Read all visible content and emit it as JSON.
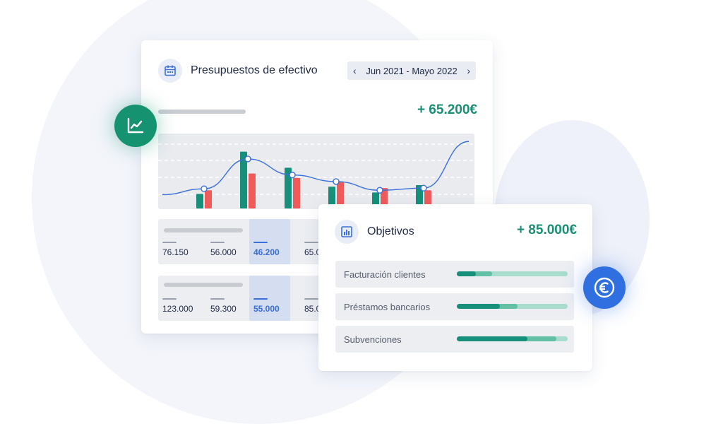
{
  "budget": {
    "title": "Presupuestos de efectivo",
    "date_range": "Jun 2021 - Mayo 2022",
    "total": "+ 65.200€",
    "rows": [
      {
        "values": [
          "76.150",
          "56.000",
          "46.200",
          "65.0"
        ],
        "highlighted_index": 2
      },
      {
        "values": [
          "123.000",
          "59.300",
          "55.000",
          "85.0"
        ],
        "highlighted_index": 2
      }
    ]
  },
  "goals": {
    "title": "Objetivos",
    "total": "+ 85.000€",
    "items": [
      {
        "label": "Facturación clientes",
        "done": 0.17,
        "partial": 0.32
      },
      {
        "label": "Préstamos bancarios",
        "done": 0.39,
        "partial": 0.55
      },
      {
        "label": "Subvenciones",
        "done": 0.64,
        "partial": 0.9
      }
    ]
  },
  "chart_data": {
    "type": "bar",
    "categories": [
      "1",
      "2",
      "3",
      "4",
      "5",
      "6"
    ],
    "series": [
      {
        "values": [
          20,
          78,
          56,
          30,
          22,
          32
        ],
        "color": "#16907a"
      },
      {
        "values": [
          25,
          48,
          42,
          37,
          28,
          25
        ],
        "color": "#ef5b5b"
      }
    ],
    "trend_points": [
      27,
      68,
      46,
      37,
      25,
      28
    ],
    "ylim": [
      0,
      100
    ],
    "colors": {
      "positive": "#16907a",
      "negative": "#ef5b5b",
      "line": "#3b6fd9"
    }
  },
  "icons": {
    "calendar": "calendar-icon",
    "trend": "trend-chart-icon",
    "bar_chart": "bar-chart-icon",
    "euro": "euro-icon",
    "prev": "chevron-left-icon",
    "next": "chevron-right-icon"
  }
}
